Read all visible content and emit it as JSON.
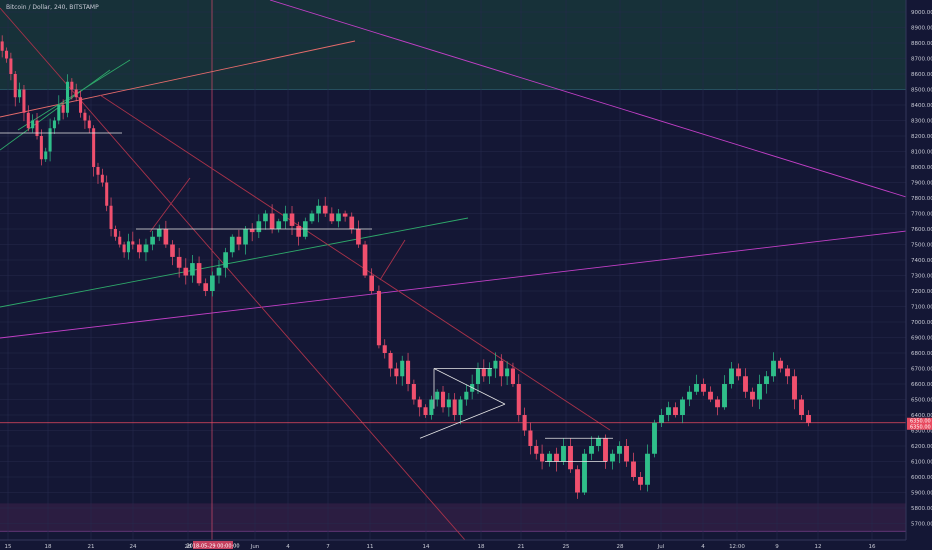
{
  "title": "Bitcoin / Dollar, 240, BITSTAMP",
  "colors": {
    "background": "#141735",
    "grid": "#262a4d",
    "up": "#2fbf8a",
    "down": "#f0506e",
    "axis_text": "#c9cbd6",
    "resistance_zone": "#17343a",
    "support_zone": "#2e1e43",
    "price_line": "#e8495f",
    "trend_magenta": "#c23fc7",
    "trend_green": "#2ea86a",
    "trend_salmon": "#e56b6b",
    "channel_red": "#a8324a",
    "annotation_white": "#e6e6e6"
  },
  "price_axis": {
    "ticks": [
      "9000.00",
      "8900.00",
      "8800.00",
      "8700.00",
      "8600.00",
      "8500.00",
      "8400.00",
      "8300.00",
      "8200.00",
      "8100.00",
      "8000.00",
      "7900.00",
      "7800.00",
      "7700.00",
      "7600.00",
      "7500.00",
      "7400.00",
      "7300.00",
      "7200.00",
      "7100.00",
      "7000.00",
      "6900.00",
      "6800.00",
      "6700.00",
      "6600.00",
      "6500.00",
      "6400.00",
      "6300.00",
      "6200.00",
      "6100.00",
      "6000.00",
      "5900.00",
      "5800.00",
      "5700.00"
    ],
    "current_price": "6350.00",
    "current_price_sub": "6350.00"
  },
  "time_axis": {
    "ticks": [
      "15",
      "18",
      "21",
      "24",
      "28",
      "Jun",
      "4",
      "7",
      "11",
      "14",
      "18",
      "21",
      "25",
      "28",
      "Jul",
      "4",
      "12:00",
      "9",
      "12",
      "16"
    ],
    "cursor_label": "2018-05-29 00:00:00"
  },
  "chart_data": {
    "type": "candlestick",
    "symbol": "Bitcoin / Dollar",
    "interval": "240",
    "exchange": "BITSTAMP",
    "ylim": [
      5650,
      9080
    ],
    "y_axis_side": "right",
    "grid": true,
    "zones": [
      {
        "name": "resistance",
        "from": 8500,
        "to": 9080
      },
      {
        "name": "support",
        "from": 5650,
        "to": 5830
      }
    ],
    "series": [
      {
        "segment": "May 14 - May 24",
        "closes": [
          8750,
          8700,
          8600,
          8450,
          8500,
          8350,
          8250,
          8300,
          8200,
          8050,
          8100,
          8250,
          8300,
          8400,
          8350,
          8550,
          8500,
          8450,
          8350,
          8300,
          8250,
          8000,
          7950,
          7900,
          7750,
          7600,
          7550,
          7500,
          7450,
          7520,
          7500
        ]
      },
      {
        "segment": "May 24 - Jun 10",
        "closes": [
          7450,
          7500,
          7550,
          7600,
          7500,
          7420,
          7350,
          7300,
          7380,
          7250,
          7200,
          7300,
          7350,
          7450,
          7550,
          7500,
          7600,
          7580,
          7650,
          7700,
          7600,
          7650,
          7700,
          7620,
          7550,
          7650,
          7700,
          7750,
          7700,
          7650,
          7700,
          7680,
          7600,
          7500,
          7300,
          7200
        ]
      },
      {
        "segment": "Jun 10 - Jun 24",
        "closes": [
          6850,
          6800,
          6700,
          6650,
          6750,
          6600,
          6500,
          6450,
          6400,
          6500,
          6550,
          6450,
          6500,
          6400,
          6500,
          6550,
          6600,
          6700,
          6650,
          6700,
          6750,
          6650,
          6700,
          6600,
          6400,
          6300,
          6200,
          6150,
          6100
        ]
      },
      {
        "segment": "Jun 24 - Jul 12",
        "closes": [
          6150,
          6100,
          6200,
          6050,
          5900,
          6150,
          6200,
          6250,
          6100,
          6150,
          6200,
          6100,
          6000,
          5950,
          6150,
          6350,
          6400,
          6450,
          6400,
          6500,
          6550,
          6600,
          6550,
          6500,
          6450,
          6600,
          6700,
          6650,
          6550,
          6500,
          6600,
          6650,
          6750,
          6700,
          6650,
          6500,
          6400,
          6350
        ]
      }
    ],
    "horizontal_levels": [
      7600,
      6700,
      6250,
      6100
    ],
    "x_ticks": [
      "15",
      "18",
      "21",
      "24",
      "28",
      "Jun",
      "4",
      "7",
      "11",
      "14",
      "18",
      "21",
      "25",
      "28",
      "Jul",
      "4",
      "12:00",
      "9",
      "12",
      "16"
    ]
  }
}
